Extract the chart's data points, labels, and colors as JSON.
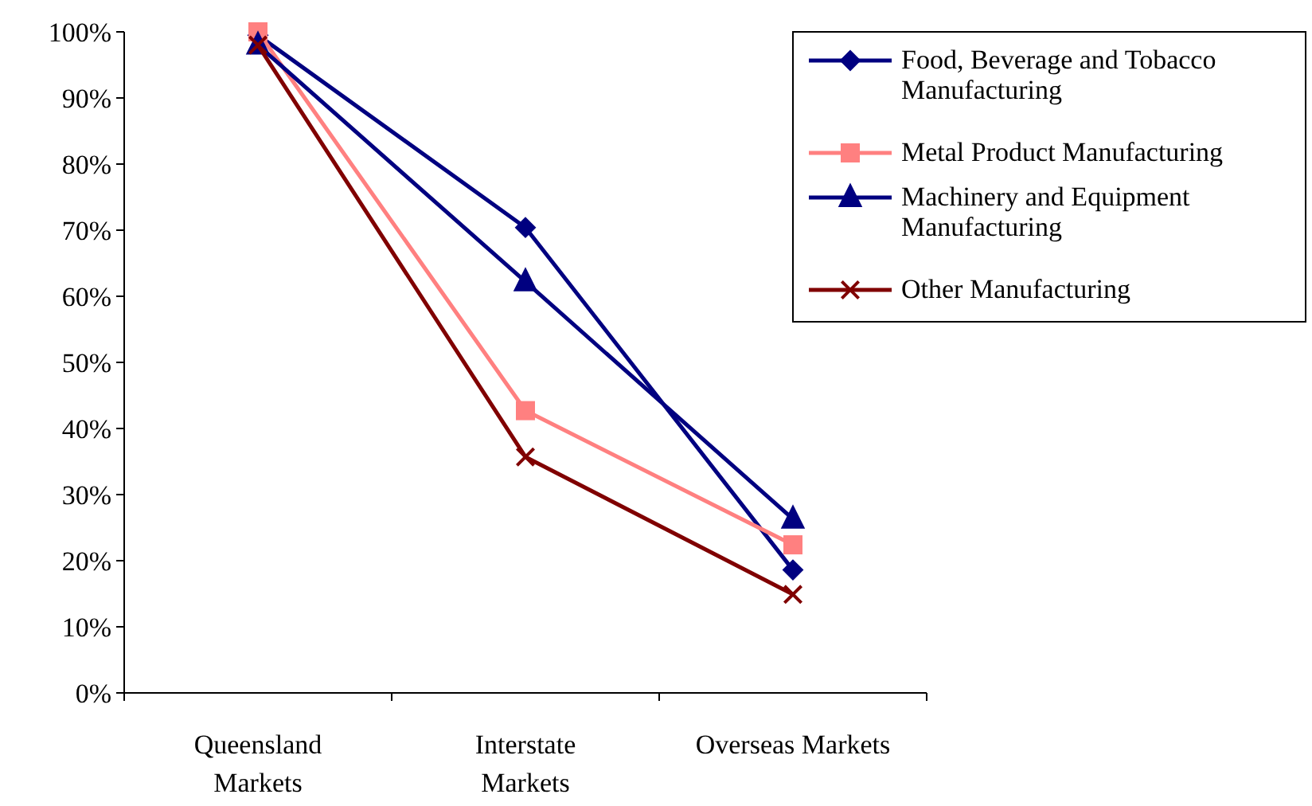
{
  "chart_data": {
    "type": "line",
    "categories": [
      "Queensland Markets",
      "Interstate Markets",
      "Overseas Markets"
    ],
    "ylim": [
      0,
      100
    ],
    "yticks": [
      {
        "value": 0,
        "label": "0%"
      },
      {
        "value": 10,
        "label": "10%"
      },
      {
        "value": 20,
        "label": "20%"
      },
      {
        "value": 30,
        "label": "30%"
      },
      {
        "value": 40,
        "label": "40%"
      },
      {
        "value": 50,
        "label": "50%"
      },
      {
        "value": 60,
        "label": "60%"
      },
      {
        "value": 70,
        "label": "70%"
      },
      {
        "value": 80,
        "label": "80%"
      },
      {
        "value": 90,
        "label": "90%"
      },
      {
        "value": 100,
        "label": "100%"
      }
    ],
    "grid": false,
    "legend": "top right",
    "line_style": "solid",
    "series": [
      {
        "name": "Food, Beverage and Tobacco Manufacturing",
        "color": "#000080",
        "marker": "diamond",
        "values": [
          99.5,
          70.4,
          18.6
        ]
      },
      {
        "name": "Metal Product Manufacturing",
        "color": "#ff8080",
        "marker": "square",
        "values": [
          100,
          42.7,
          22.4
        ]
      },
      {
        "name": "Machinery and Equipment Manufacturing",
        "color": "#000080",
        "marker": "triangle",
        "values": [
          98,
          62.2,
          26.3
        ]
      },
      {
        "name": "Other Manufacturing",
        "color": "#800000",
        "marker": "cross",
        "values": [
          98,
          35.7,
          14.9
        ]
      }
    ]
  }
}
